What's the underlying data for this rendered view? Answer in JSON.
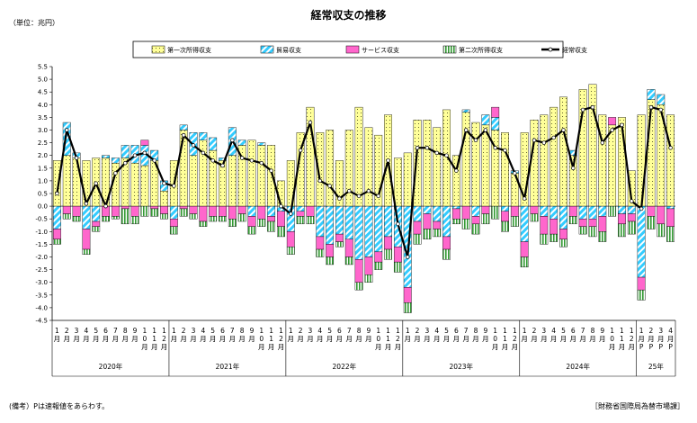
{
  "unit_label": "（単位：兆円）",
  "footnote": "(備考）Pは速報値をあらわす。",
  "source": "［財務省国際局為替市場課］",
  "chart_data": {
    "type": "bar",
    "title": "経常収支の推移",
    "xlabel": "",
    "ylabel": "",
    "ylim": [
      -4.5,
      5.5
    ],
    "ytick_step": 0.5,
    "grid": false,
    "legend_position": "top",
    "colors": {
      "primary_income": "#FFFF99",
      "trade": "#33CCFF",
      "services": "#FF66CC",
      "secondary_income": "#66CC33",
      "current_account": "#000000"
    },
    "month_labels": [
      "1\n月",
      "2\n月",
      "3\n月",
      "4\n月",
      "5\n月",
      "6\n月",
      "7\n月",
      "8\n月",
      "9\n月",
      "1\n0\n月",
      "1\n1\n月",
      "1\n2\n月"
    ],
    "month_labels_prelim": [
      "1\n月\nP",
      "2\n月\nP",
      "3\n月\nP",
      "4\n月\nP"
    ],
    "years": [
      {
        "label": "2020年",
        "months": 12
      },
      {
        "label": "2021年",
        "months": 12
      },
      {
        "label": "2022年",
        "months": 12
      },
      {
        "label": "2023年",
        "months": 12
      },
      {
        "label": "2024年",
        "months": 12
      },
      {
        "label": "25年",
        "months": 4
      }
    ],
    "series": [
      {
        "name": "第一次所得収支",
        "key": "primary_income",
        "values": [
          1.8,
          2.0,
          1.9,
          1.8,
          1.9,
          1.9,
          1.7,
          1.9,
          1.7,
          1.6,
          1.8,
          0.6,
          1.8,
          3.0,
          2.0,
          2.6,
          2.2,
          1.8,
          2.0,
          2.4,
          2.6,
          2.4,
          2.4,
          1.0,
          1.8,
          2.9,
          3.9,
          2.9,
          3.0,
          1.8,
          3.0,
          3.9,
          3.1,
          2.8,
          3.6,
          1.9,
          2.1,
          3.4,
          3.4,
          3.1,
          3.8,
          2.0,
          3.7,
          3.3,
          3.2,
          3.0,
          2.9,
          1.3,
          2.9,
          3.4,
          3.6,
          3.9,
          4.3,
          2.0,
          4.6,
          4.8,
          3.6,
          3.2,
          3.5,
          1.4,
          3.6,
          4.2,
          4.0,
          3.6
        ]
      },
      {
        "name": "貿易収支",
        "key": "trade",
        "values": [
          -0.9,
          1.3,
          0.2,
          -0.9,
          -0.6,
          0.1,
          0.2,
          0.5,
          0.7,
          0.8,
          0.4,
          0.4,
          -0.5,
          0.2,
          0.9,
          0.3,
          0.5,
          0.1,
          1.1,
          0.2,
          -0.4,
          0.1,
          -0.4,
          -0.2,
          -1.0,
          -0.2,
          0.0,
          -1.2,
          -1.5,
          -1.1,
          -1.3,
          -2.1,
          -2.0,
          -1.8,
          -1.2,
          -1.6,
          -3.2,
          -0.6,
          -0.3,
          -0.6,
          -1.2,
          -0.1,
          0.1,
          -0.4,
          0.4,
          0.5,
          -0.2,
          0.1,
          -1.4,
          0.0,
          -0.4,
          -0.5,
          -0.9,
          0.2,
          -0.5,
          -0.5,
          -0.4,
          0.0,
          -0.3,
          -0.3,
          -2.8,
          0.4,
          0.4,
          -0.1
        ]
      },
      {
        "name": "サービス収支",
        "key": "services",
        "values": [
          -0.4,
          -0.3,
          -0.4,
          -0.8,
          -0.2,
          -0.4,
          -0.4,
          -0.1,
          -0.4,
          0.2,
          -0.1,
          -0.3,
          -0.3,
          -0.1,
          -0.3,
          -0.6,
          -0.4,
          -0.4,
          -0.5,
          -0.3,
          -0.4,
          -0.5,
          -0.2,
          -0.6,
          -0.6,
          -0.2,
          -0.4,
          -0.5,
          -0.5,
          -0.3,
          -0.7,
          -0.9,
          -0.7,
          -0.4,
          -0.5,
          -0.6,
          -0.6,
          -0.5,
          -0.6,
          -0.3,
          -0.5,
          -0.4,
          -0.5,
          -0.3,
          -0.3,
          0.4,
          -0.4,
          -0.4,
          -0.6,
          -0.3,
          -0.7,
          -0.6,
          -0.4,
          -0.4,
          -0.3,
          -0.3,
          -0.6,
          0.3,
          -0.4,
          -0.3,
          -0.5,
          -0.4,
          -0.7,
          -0.7
        ]
      },
      {
        "name": "第二次所得収支",
        "key": "secondary_income",
        "values": [
          -0.2,
          -0.2,
          -0.2,
          -0.2,
          -0.2,
          -0.2,
          -0.1,
          -0.6,
          -0.3,
          -0.4,
          -0.3,
          -0.2,
          -0.3,
          -0.3,
          -0.2,
          -0.2,
          -0.2,
          -0.2,
          -0.3,
          -0.3,
          -0.3,
          -0.3,
          -0.4,
          -0.4,
          -0.3,
          -0.3,
          -0.3,
          -0.3,
          -0.3,
          -0.2,
          -0.3,
          -0.3,
          -0.3,
          -0.3,
          -0.4,
          -0.4,
          -0.4,
          -0.4,
          -0.4,
          -0.3,
          -0.4,
          -0.2,
          -0.4,
          -0.4,
          -0.4,
          -0.5,
          -0.4,
          -0.4,
          -0.4,
          -0.3,
          -0.4,
          -0.3,
          -0.3,
          -0.3,
          -0.3,
          -0.4,
          -0.4,
          -0.4,
          -0.5,
          -0.5,
          -0.4,
          -0.5,
          -0.5,
          -0.6
        ]
      },
      {
        "name": "経常収支",
        "key": "current_account",
        "values": [
          0.5,
          3.0,
          1.9,
          0.1,
          0.9,
          0.0,
          1.3,
          1.7,
          2.0,
          2.1,
          1.8,
          0.9,
          0.8,
          2.8,
          2.4,
          2.1,
          1.8,
          1.6,
          2.6,
          1.9,
          1.8,
          1.7,
          1.4,
          0.0,
          -0.3,
          2.2,
          3.3,
          1.0,
          0.8,
          0.3,
          0.6,
          0.4,
          0.6,
          0.4,
          1.8,
          -0.7,
          -2.0,
          2.3,
          2.3,
          2.1,
          2.0,
          1.4,
          3.0,
          2.6,
          3.0,
          2.3,
          2.2,
          1.3,
          0.3,
          2.6,
          2.5,
          2.7,
          3.0,
          1.5,
          3.8,
          3.9,
          2.5,
          3.0,
          3.2,
          0.2,
          -0.1,
          3.9,
          3.8,
          2.3
        ]
      }
    ]
  }
}
